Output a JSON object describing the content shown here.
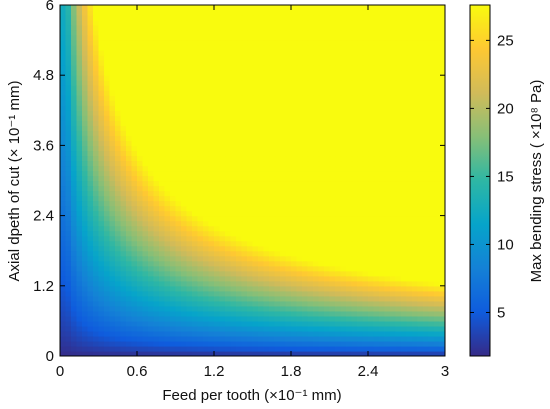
{
  "chart_data": {
    "type": "heatmap",
    "title": "",
    "xlabel": "Feed per tooth (×10⁻¹ mm)",
    "ylabel": "Axial dpeth of cut (× 10⁻¹ mm)",
    "colorbar_label": "Max bending stress ( ×10⁸ Pa)",
    "xlim": [
      0,
      3
    ],
    "ylim": [
      0,
      6
    ],
    "x_ticks": [
      "0",
      "0.6",
      "1.2",
      "1.8",
      "2.4",
      "3"
    ],
    "x_tick_values": [
      0,
      0.6,
      1.2,
      1.8,
      2.4,
      3
    ],
    "y_ticks": [
      "0",
      "1.2",
      "2.4",
      "3.6",
      "4.8",
      "6"
    ],
    "y_tick_values": [
      0,
      1.2,
      2.4,
      3.6,
      4.8,
      6
    ],
    "colorbar_range": [
      1.8,
      27.6
    ],
    "colorbar_ticks": [
      "5",
      "10",
      "15",
      "20",
      "25"
    ],
    "colorbar_tick_values": [
      5,
      10,
      15,
      20,
      25
    ],
    "colormap": "parula",
    "colormap_stops": [
      "#352a87",
      "#0f5cdd",
      "#1481d6",
      "#06a4ca",
      "#2eb7a4",
      "#87bf77",
      "#d1bb59",
      "#fec832",
      "#f9fb0e"
    ],
    "grid": false
  }
}
